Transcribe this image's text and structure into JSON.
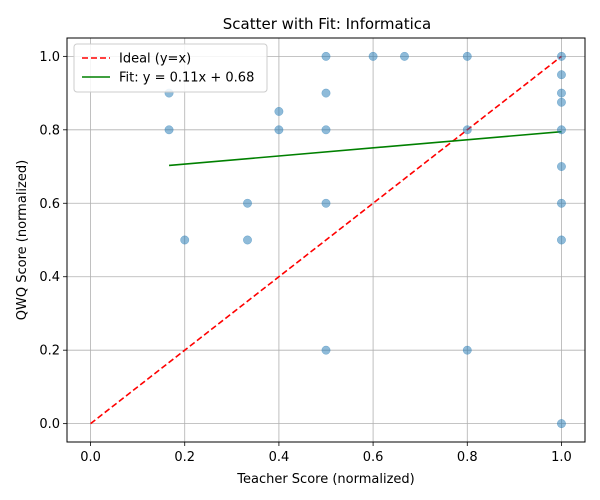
{
  "chart_data": {
    "type": "scatter",
    "title": "Scatter with Fit: Informatica",
    "xlabel": "Teacher Score (normalized)",
    "ylabel": "QWQ Score (normalized)",
    "xlim": [
      -0.05,
      1.05
    ],
    "ylim": [
      -0.05,
      1.05
    ],
    "xticks": [
      0.0,
      0.2,
      0.4,
      0.6,
      0.8,
      1.0
    ],
    "xtick_labels": [
      "0.0",
      "0.2",
      "0.4",
      "0.6",
      "0.8",
      "1.0"
    ],
    "yticks": [
      0.0,
      0.2,
      0.4,
      0.6,
      0.8,
      1.0
    ],
    "ytick_labels": [
      "0.0",
      "0.2",
      "0.4",
      "0.6",
      "0.8",
      "1.0"
    ],
    "grid": true,
    "legend_position": "top-left",
    "series": [
      {
        "kind": "points",
        "color": "#1f77b4",
        "x": [
          0.1667,
          0.1667,
          0.2,
          0.3333,
          0.3333,
          0.4,
          0.4,
          0.5,
          0.5,
          0.5,
          0.5,
          0.5,
          0.6,
          0.6667,
          0.8,
          0.8,
          0.8,
          1.0,
          1.0,
          1.0,
          1.0,
          1.0,
          1.0,
          1.0,
          1.0,
          1.0
        ],
        "y": [
          0.9,
          0.8,
          0.5,
          0.6,
          0.5,
          0.85,
          0.8,
          1.0,
          0.9,
          0.8,
          0.6,
          0.2,
          1.0,
          1.0,
          1.0,
          0.8,
          0.2,
          1.0,
          0.95,
          0.9,
          0.875,
          0.8,
          0.7,
          0.6,
          0.5,
          0.0
        ]
      },
      {
        "kind": "line",
        "name": "Ideal (y=x)",
        "style": "dashed",
        "color": "#ff0000",
        "x": [
          0.0,
          1.0
        ],
        "y": [
          0.0,
          1.0
        ]
      },
      {
        "kind": "line",
        "name": "Fit: y = 0.11x + 0.68",
        "style": "solid",
        "color": "#008000",
        "x": [
          0.1667,
          1.0
        ],
        "y": [
          0.703,
          0.795
        ]
      }
    ]
  }
}
